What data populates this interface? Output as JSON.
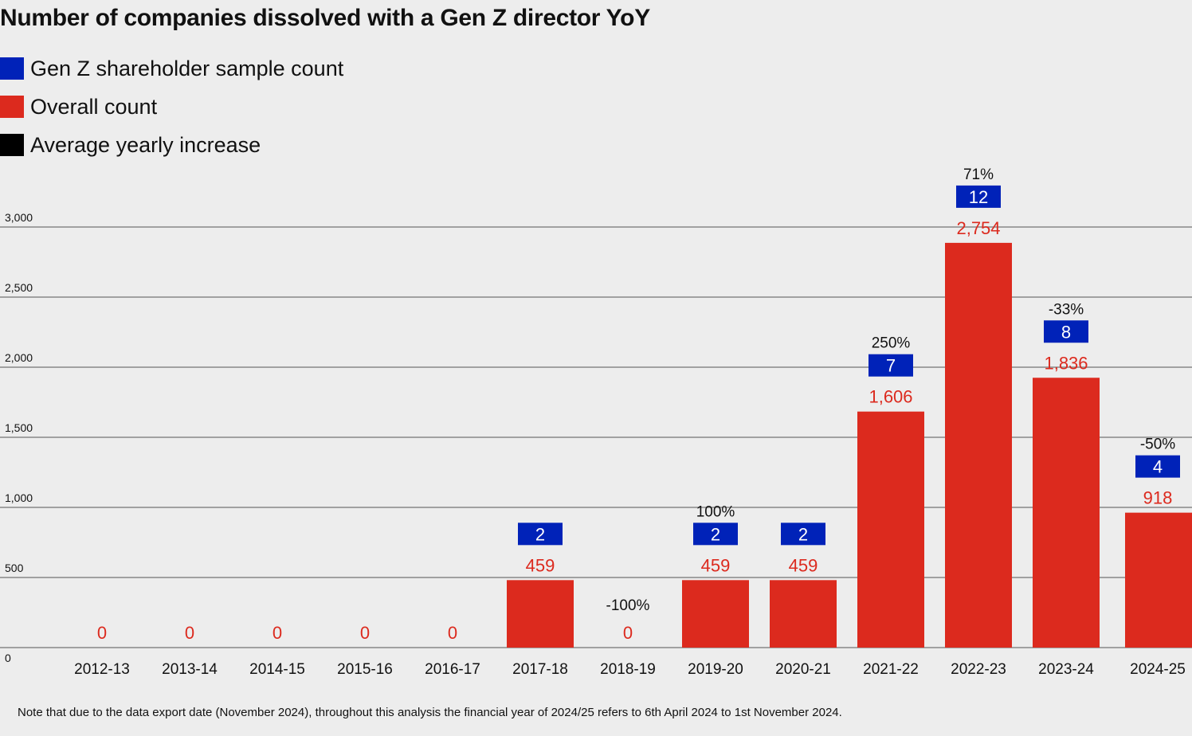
{
  "chart_data": {
    "type": "bar",
    "title": "Number of companies dissolved with a Gen Z director YoY",
    "categories": [
      "2012-13",
      "2013-14",
      "2014-15",
      "2015-16",
      "2016-17",
      "2017-18",
      "2018-19",
      "2019-20",
      "2020-21",
      "2021-22",
      "2022-23",
      "2023-24",
      "2024-25"
    ],
    "series": [
      {
        "name": "Gen Z shareholder sample count",
        "color": "#0022b8",
        "values": [
          null,
          null,
          null,
          null,
          null,
          2,
          null,
          2,
          2,
          7,
          12,
          8,
          4
        ]
      },
      {
        "name": "Overall count",
        "color": "#dc2a1e",
        "values": [
          0,
          0,
          0,
          0,
          0,
          459,
          0,
          459,
          459,
          1606,
          2754,
          1836,
          918
        ],
        "labels": [
          "0",
          "0",
          "0",
          "0",
          "0",
          "459",
          "0",
          "459",
          "459",
          "1,606",
          "2,754",
          "1,836",
          "918"
        ]
      },
      {
        "name": "Average yearly increase",
        "color": "#000000",
        "values": [
          null,
          null,
          null,
          null,
          null,
          null,
          "-100%",
          "100%",
          null,
          "250%",
          "71%",
          "-33%",
          "-50%"
        ]
      }
    ],
    "yticks": [
      "0",
      "500",
      "1,000",
      "1,500",
      "2,000",
      "2,500",
      "3,000"
    ],
    "ylim": [
      0,
      3000
    ],
    "grid": true,
    "legend": "top-left",
    "note": "Note that due to the data export date (November 2024), throughout this analysis the financial year of 2024/25 refers to 6th April 2024 to 1st November 2024."
  }
}
